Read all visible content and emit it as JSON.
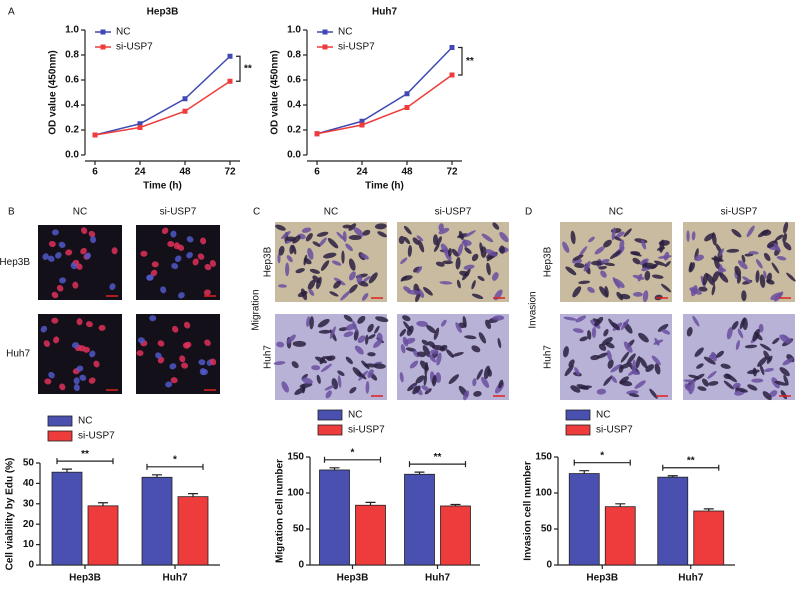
{
  "figure": {
    "panel_labels": [
      "A",
      "B",
      "C",
      "D"
    ],
    "image_panels": [
      {
        "columns": [
          "NC",
          "si-USP7"
        ],
        "rows": [
          "Hep3B",
          "Huh7"
        ]
      },
      {
        "columns": [
          "NC",
          "si-USP7"
        ],
        "rows": [
          "Hep3B",
          "Huh7"
        ],
        "group": "Migration"
      },
      {
        "columns": [
          "NC",
          "si-USP7"
        ],
        "rows": [
          "Hep3B",
          "Huh7"
        ],
        "group": "Invasion"
      }
    ]
  },
  "chart_data": [
    {
      "type": "line",
      "title": "Hep3B",
      "xlabel": "Time (h)",
      "ylabel": "OD value (450nm)",
      "categories": [
        "6",
        "24",
        "48",
        "72"
      ],
      "series": [
        {
          "name": "NC",
          "color": "#3f48b4",
          "values": [
            0.16,
            0.25,
            0.45,
            0.79
          ]
        },
        {
          "name": "si-USP7",
          "color": "#ee3b3b",
          "values": [
            0.16,
            0.22,
            0.35,
            0.59
          ]
        }
      ],
      "ylim": [
        0,
        1
      ],
      "yticks": [
        {
          "value": 0,
          "label": "0.0"
        },
        0.2,
        0.4,
        0.6,
        0.8,
        {
          "value": 1,
          "label": "1.0"
        }
      ],
      "significance": "**"
    },
    {
      "type": "line",
      "title": "Huh7",
      "xlabel": "Time (h)",
      "ylabel": "OD value (450nm)",
      "categories": [
        "6",
        "24",
        "48",
        "72"
      ],
      "series": [
        {
          "name": "NC",
          "color": "#3f48b4",
          "values": [
            0.17,
            0.27,
            0.49,
            0.86
          ]
        },
        {
          "name": "si-USP7",
          "color": "#ee3b3b",
          "values": [
            0.17,
            0.24,
            0.38,
            0.64
          ]
        }
      ],
      "ylim": [
        0,
        1
      ],
      "yticks": [
        {
          "value": 0,
          "label": "0.0"
        },
        0.2,
        0.4,
        0.6,
        0.8,
        {
          "value": 1,
          "label": "1.0"
        }
      ],
      "significance": "**"
    },
    {
      "type": "bar",
      "ylabel": "Cell viability by Edu (%)",
      "categories": [
        "Hep3B",
        "Huh7"
      ],
      "series": [
        {
          "name": "NC",
          "color": "#4a50b0",
          "values": [
            45.5,
            43
          ],
          "errors": [
            1.5,
            1.2
          ]
        },
        {
          "name": "si-USP7",
          "color": "#ee3b3b",
          "values": [
            29,
            33.5
          ],
          "errors": [
            1.5,
            1.5
          ]
        }
      ],
      "ylim": [
        0,
        50
      ],
      "yticks": [
        0,
        10,
        20,
        30,
        40,
        50
      ],
      "significance": [
        "**",
        "*"
      ]
    },
    {
      "type": "bar",
      "ylabel": "Migration cell number",
      "categories": [
        "Hep3B",
        "Huh7"
      ],
      "series": [
        {
          "name": "NC",
          "color": "#4a50b0",
          "values": [
            132,
            126
          ],
          "errors": [
            3,
            3
          ]
        },
        {
          "name": "si-USP7",
          "color": "#ee3b3b",
          "values": [
            83,
            82
          ],
          "errors": [
            4,
            2
          ]
        }
      ],
      "ylim": [
        0,
        150
      ],
      "yticks": [
        0,
        50,
        100,
        150
      ],
      "significance": [
        "*",
        "**"
      ]
    },
    {
      "type": "bar",
      "ylabel": "Invasion cell number",
      "categories": [
        "Hep3B",
        "Huh7"
      ],
      "series": [
        {
          "name": "NC",
          "color": "#4a50b0",
          "values": [
            127,
            122
          ],
          "errors": [
            4,
            2
          ]
        },
        {
          "name": "si-USP7",
          "color": "#ee3b3b",
          "values": [
            81,
            75
          ],
          "errors": [
            4,
            3
          ]
        }
      ],
      "ylim": [
        0,
        150
      ],
      "yticks": [
        0,
        50,
        100,
        150
      ],
      "significance": [
        "*",
        "**"
      ]
    }
  ]
}
